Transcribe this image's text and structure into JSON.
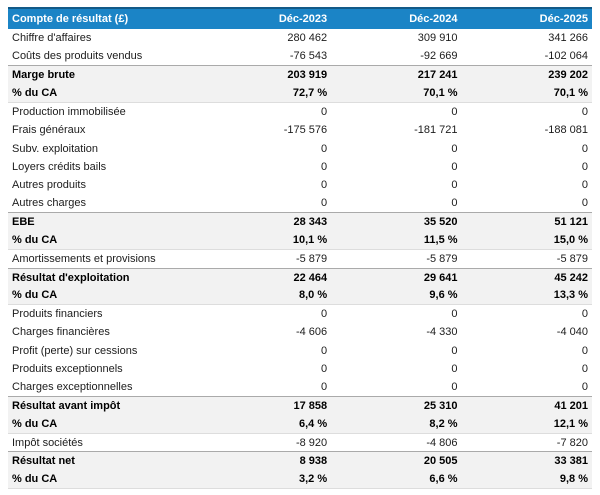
{
  "table": {
    "title": "Compte de résultat (£)",
    "columns": [
      "Déc-2023",
      "Déc-2024",
      "Déc-2025"
    ],
    "rows": [
      {
        "label": "Chiffre d'affaires",
        "values": [
          "280 462",
          "309 910",
          "341 266"
        ],
        "emphasis": false,
        "rule_top": false,
        "rule_bottom": false
      },
      {
        "label": "Coûts des produits vendus",
        "values": [
          "-76 543",
          "-92 669",
          "-102 064"
        ],
        "emphasis": false,
        "rule_top": false,
        "rule_bottom": false
      },
      {
        "label": "Marge brute",
        "values": [
          "203 919",
          "217 241",
          "239 202"
        ],
        "emphasis": true,
        "rule_top": true,
        "rule_bottom": false
      },
      {
        "label": "% du CA",
        "values": [
          "72,7 %",
          "70,1 %",
          "70,1 %"
        ],
        "emphasis": true,
        "rule_top": false,
        "rule_bottom": true
      },
      {
        "label": "Production immobilisée",
        "values": [
          "0",
          "0",
          "0"
        ],
        "emphasis": false,
        "rule_top": false,
        "rule_bottom": false
      },
      {
        "label": "Frais généraux",
        "values": [
          "-175 576",
          "-181 721",
          "-188 081"
        ],
        "emphasis": false,
        "rule_top": false,
        "rule_bottom": false
      },
      {
        "label": "Subv. exploitation",
        "values": [
          "0",
          "0",
          "0"
        ],
        "emphasis": false,
        "rule_top": false,
        "rule_bottom": false
      },
      {
        "label": "Loyers crédits bails",
        "values": [
          "0",
          "0",
          "0"
        ],
        "emphasis": false,
        "rule_top": false,
        "rule_bottom": false
      },
      {
        "label": "Autres produits",
        "values": [
          "0",
          "0",
          "0"
        ],
        "emphasis": false,
        "rule_top": false,
        "rule_bottom": false
      },
      {
        "label": "Autres charges",
        "values": [
          "0",
          "0",
          "0"
        ],
        "emphasis": false,
        "rule_top": false,
        "rule_bottom": false
      },
      {
        "label": "EBE",
        "values": [
          "28 343",
          "35 520",
          "51 121"
        ],
        "emphasis": true,
        "rule_top": true,
        "rule_bottom": false
      },
      {
        "label": "% du CA",
        "values": [
          "10,1 %",
          "11,5 %",
          "15,0 %"
        ],
        "emphasis": true,
        "rule_top": false,
        "rule_bottom": true
      },
      {
        "label": "Amortissements et provisions",
        "values": [
          "-5 879",
          "-5 879",
          "-5 879"
        ],
        "emphasis": false,
        "rule_top": false,
        "rule_bottom": false
      },
      {
        "label": "Résultat d'exploitation",
        "values": [
          "22 464",
          "29 641",
          "45 242"
        ],
        "emphasis": true,
        "rule_top": true,
        "rule_bottom": false
      },
      {
        "label": "% du CA",
        "values": [
          "8,0 %",
          "9,6 %",
          "13,3 %"
        ],
        "emphasis": true,
        "rule_top": false,
        "rule_bottom": true
      },
      {
        "label": "Produits financiers",
        "values": [
          "0",
          "0",
          "0"
        ],
        "emphasis": false,
        "rule_top": false,
        "rule_bottom": false
      },
      {
        "label": "Charges financières",
        "values": [
          "-4 606",
          "-4 330",
          "-4 040"
        ],
        "emphasis": false,
        "rule_top": false,
        "rule_bottom": false
      },
      {
        "label": "Profit (perte) sur cessions",
        "values": [
          "0",
          "0",
          "0"
        ],
        "emphasis": false,
        "rule_top": false,
        "rule_bottom": false
      },
      {
        "label": "Produits exceptionnels",
        "values": [
          "0",
          "0",
          "0"
        ],
        "emphasis": false,
        "rule_top": false,
        "rule_bottom": false
      },
      {
        "label": "Charges exceptionnelles",
        "values": [
          "0",
          "0",
          "0"
        ],
        "emphasis": false,
        "rule_top": false,
        "rule_bottom": false
      },
      {
        "label": "Résultat avant impôt",
        "values": [
          "17 858",
          "25 310",
          "41 201"
        ],
        "emphasis": true,
        "rule_top": true,
        "rule_bottom": false
      },
      {
        "label": "% du CA",
        "values": [
          "6,4 %",
          "8,2 %",
          "12,1 %"
        ],
        "emphasis": true,
        "rule_top": false,
        "rule_bottom": true
      },
      {
        "label": "Impôt sociétés",
        "values": [
          "-8 920",
          "-4 806",
          "-7 820"
        ],
        "emphasis": false,
        "rule_top": false,
        "rule_bottom": false
      },
      {
        "label": "Résultat net",
        "values": [
          "8 938",
          "20 505",
          "33 381"
        ],
        "emphasis": true,
        "rule_top": true,
        "rule_bottom": false
      },
      {
        "label": "% du CA",
        "values": [
          "3,2 %",
          "6,6 %",
          "9,8 %"
        ],
        "emphasis": true,
        "rule_top": false,
        "rule_bottom": true
      }
    ]
  },
  "colors": {
    "header_bg": "#1b84c6",
    "header_border_top": "#135a88",
    "header_text": "#ffffff",
    "shaded_row_bg": "#f2f2f2",
    "rule_top": "#aaaaaa",
    "rule_bottom": "#dddddd",
    "body_text": "#1c1c1c"
  }
}
